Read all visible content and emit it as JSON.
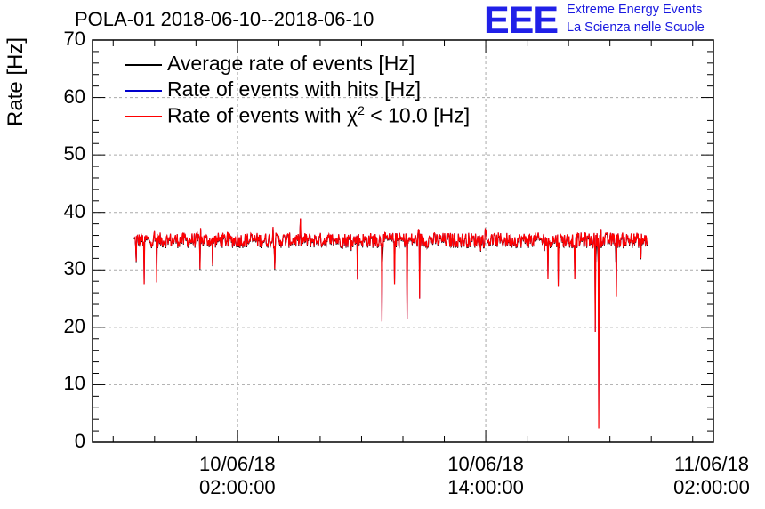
{
  "chart_data": {
    "type": "line",
    "title": "POLA-01 2018-06-10--2018-06-10",
    "ylabel": "Rate [Hz]",
    "xlabel": "",
    "ylim": [
      0,
      70
    ],
    "xlim_hours": [
      -5.0,
      25.0
    ],
    "yticks": [
      "0",
      "10",
      "20",
      "30",
      "40",
      "50",
      "60",
      "70"
    ],
    "xticks": [
      {
        "hours": 2,
        "label": "10/06/18\n02:00:00"
      },
      {
        "hours": 14,
        "label": "10/06/18\n14:00:00"
      },
      {
        "hours": 26,
        "label": "11/06/18\n02:00:00"
      }
    ],
    "grid": true,
    "legend_position": "top-left",
    "series": [
      {
        "name": "Average rate of events [Hz]",
        "color": "#000000"
      },
      {
        "name": "Rate of events with hits [Hz]",
        "color": "#0000cc"
      },
      {
        "name": "Rate of events with χ² < 10.0 [Hz]",
        "color": "#ff0000"
      }
    ],
    "data_range_hours": [
      -3.0,
      21.8
    ],
    "baseline_rate": 35.2,
    "dips": [
      {
        "hours": -2.9,
        "value": 31.5
      },
      {
        "hours": -2.5,
        "value": 27.5
      },
      {
        "hours": -1.9,
        "value": 27.8
      },
      {
        "hours": 0.2,
        "value": 30.2
      },
      {
        "hours": 0.8,
        "value": 30.8
      },
      {
        "hours": 3.8,
        "value": 30.2
      },
      {
        "hours": 7.8,
        "value": 28.3
      },
      {
        "hours": 9.0,
        "value": 21.0
      },
      {
        "hours": 9.6,
        "value": 27.5
      },
      {
        "hours": 10.2,
        "value": 21.4
      },
      {
        "hours": 10.8,
        "value": 25.0
      },
      {
        "hours": 17.0,
        "value": 28.5
      },
      {
        "hours": 17.5,
        "value": 27.2
      },
      {
        "hours": 18.3,
        "value": 28.5
      },
      {
        "hours": 19.3,
        "value": 19.2
      },
      {
        "hours": 19.45,
        "value": 2.4
      },
      {
        "hours": 20.3,
        "value": 25.3
      },
      {
        "hours": 21.5,
        "value": 32.0
      }
    ]
  },
  "logo": {
    "text": "EEE",
    "line1": "Extreme Energy Events",
    "line2": "La Scienza nelle Scuole"
  }
}
